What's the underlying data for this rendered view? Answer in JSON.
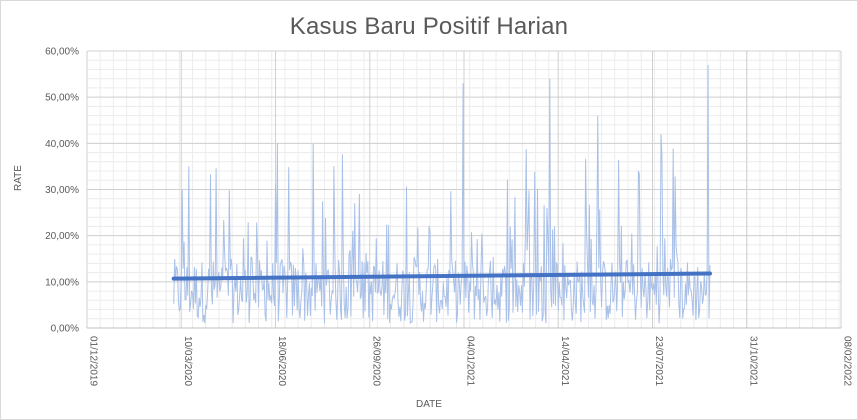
{
  "chart_data": {
    "type": "line",
    "title": "Kasus Baru Positif Harian",
    "xlabel": "DATE",
    "ylabel": "RATE",
    "ylim": [
      0,
      0.6
    ],
    "y_ticks": [
      "0,00%",
      "10,00%",
      "20,00%",
      "30,00%",
      "40,00%",
      "50,00%",
      "60,00%"
    ],
    "y_tick_values": [
      0,
      0.1,
      0.2,
      0.3,
      0.4,
      0.5,
      0.6
    ],
    "x_range": [
      "2019-12-01",
      "2022-02-08"
    ],
    "x_ticks": [
      "01/12/2019",
      "10/03/2020",
      "18/06/2020",
      "26/09/2020",
      "04/01/2021",
      "14/04/2021",
      "23/07/2021",
      "31/10/2021",
      "08/02/2022"
    ],
    "x_tick_dates": [
      "2019-12-01",
      "2020-03-10",
      "2020-06-18",
      "2020-09-26",
      "2021-01-04",
      "2021-04-14",
      "2021-07-23",
      "2021-10-31",
      "2022-02-08"
    ],
    "grid": true,
    "series": [
      {
        "kind": "daily",
        "color": "#a9c0e8",
        "x_start": "2020-03-02",
        "x_end": "2021-09-22",
        "notable_peaks": [
          {
            "x": "2020-03-11",
            "y": 0.3
          },
          {
            "x": "2020-03-18",
            "y": 0.35
          },
          {
            "x": "2020-06-20",
            "y": 0.4
          },
          {
            "x": "2021-01-03",
            "y": 0.53
          },
          {
            "x": "2021-04-05",
            "y": 0.54
          },
          {
            "x": "2021-05-26",
            "y": 0.46
          },
          {
            "x": "2021-08-01",
            "y": 0.42
          },
          {
            "x": "2021-09-20",
            "y": 0.57
          }
        ]
      },
      {
        "kind": "trendline",
        "color": "#4472c4",
        "points": [
          {
            "x": "2020-03-02",
            "y": 0.107
          },
          {
            "x": "2021-09-22",
            "y": 0.118
          }
        ]
      }
    ]
  }
}
